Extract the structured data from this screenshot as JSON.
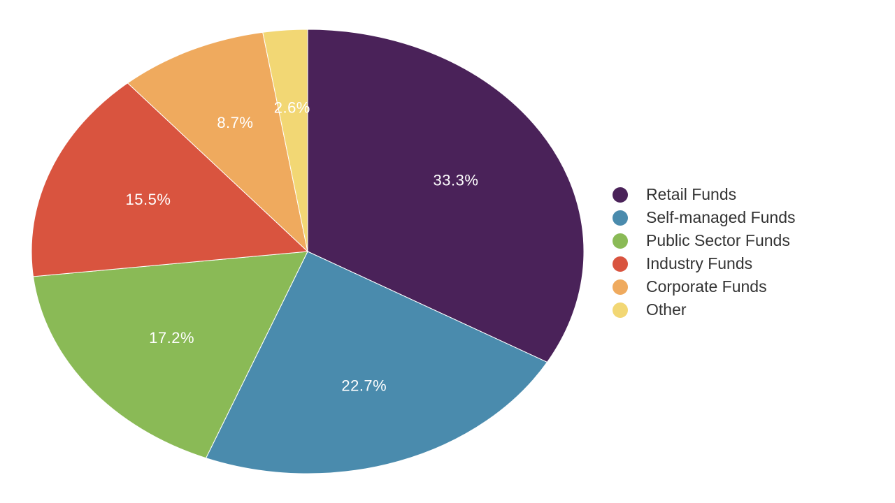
{
  "chart_data": {
    "type": "pie",
    "categories": [
      "Retail Funds",
      "Self-managed Funds",
      "Public Sector Funds",
      "Industry Funds",
      "Corporate Funds",
      "Other"
    ],
    "values": [
      33.3,
      22.7,
      17.2,
      15.5,
      8.7,
      2.6
    ],
    "labels": [
      "33.3%",
      "22.7%",
      "17.2%",
      "15.5%",
      "8.7%",
      "2.6%"
    ],
    "colors": [
      "#4a2259",
      "#4a8bad",
      "#8aba56",
      "#d9543f",
      "#efaa5e",
      "#f2d774"
    ],
    "start": "12 o'clock",
    "direction": "clockwise",
    "legend_position": "right",
    "title": "",
    "legend": [
      {
        "label": "Retail Funds",
        "color": "#4a2259"
      },
      {
        "label": "Self-managed Funds",
        "color": "#4a8bad"
      },
      {
        "label": "Public Sector Funds",
        "color": "#8aba56"
      },
      {
        "label": "Industry Funds",
        "color": "#d9543f"
      },
      {
        "label": "Corporate Funds",
        "color": "#efaa5e"
      },
      {
        "label": "Other",
        "color": "#f2d774"
      }
    ]
  }
}
